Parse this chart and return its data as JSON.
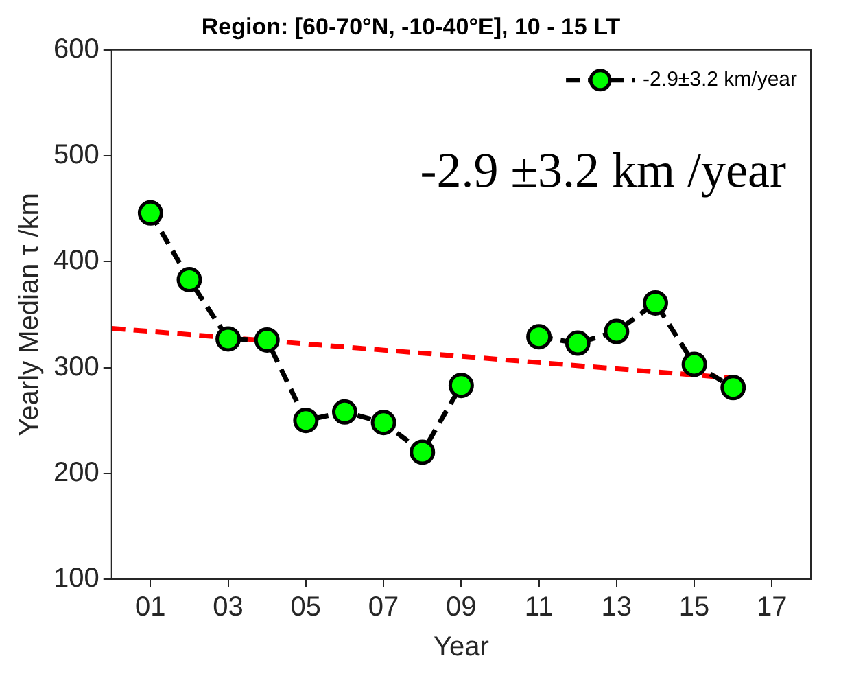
{
  "chart_data": {
    "type": "line",
    "title": "Region: [60-70°N, -10-40°E], 10 - 15 LT",
    "xlabel": "Year",
    "ylabel": "Yearly Median τ /km",
    "x": [
      1,
      2,
      3,
      4,
      5,
      6,
      7,
      8,
      9,
      10,
      11,
      12,
      13,
      14,
      15,
      16
    ],
    "series": [
      {
        "name": "-2.9±3.2 km/year",
        "color": "#00ff00",
        "values": [
          446,
          383,
          327,
          326,
          250,
          258,
          248,
          220,
          283,
          null,
          329,
          323,
          334,
          361,
          303,
          281
        ],
        "marker": "circle",
        "line_style": "dashed"
      },
      {
        "type": "line",
        "color": "#ff0000",
        "x": [
          0,
          16
        ],
        "values": [
          337,
          290
        ],
        "marker": "none",
        "line_style": "dashed"
      }
    ],
    "xlim": [
      0,
      18
    ],
    "xticks": [
      {
        "value": 1,
        "label": "01"
      },
      {
        "value": 3,
        "label": "03"
      },
      {
        "value": 5,
        "label": "05"
      },
      {
        "value": 7,
        "label": "07"
      },
      {
        "value": 9,
        "label": "09"
      },
      11,
      13,
      15,
      17
    ],
    "ylim": [
      100,
      600
    ],
    "yticks": [
      100,
      200,
      300,
      400,
      500,
      600
    ],
    "annotations": [
      "-2.9 ±3.2 km /year"
    ],
    "grid": false,
    "legend": "top right"
  }
}
